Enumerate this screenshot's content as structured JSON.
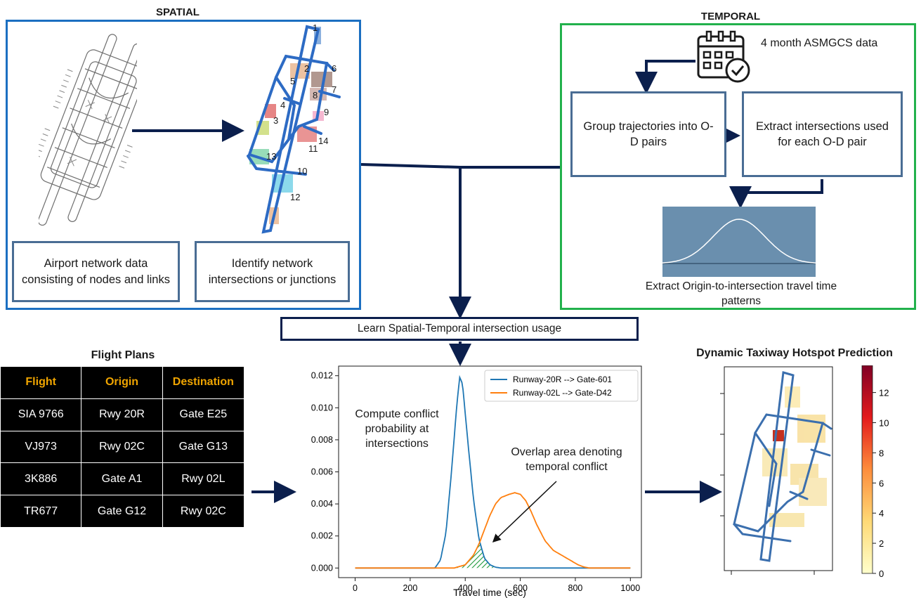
{
  "spatial": {
    "title": "SPATIAL",
    "box_left": "Airport network data consisting of nodes and links",
    "box_right": "Identify network intersections or junctions",
    "junction_labels": [
      "1",
      "2",
      "3",
      "4",
      "5",
      "6",
      "7",
      "8",
      "9",
      "10",
      "11",
      "12",
      "13",
      "14"
    ]
  },
  "temporal": {
    "title": "TEMPORAL",
    "data_label": "4 month ASMGCS data",
    "box_group": "Group trajectories into O-D pairs",
    "box_extract": "Extract intersections used for each O-D pair",
    "pattern_label": "Extract Origin-to-intersection travel time patterns"
  },
  "learn_label": "Learn Spatial-Temporal intersection usage",
  "flight_plans": {
    "title": "Flight Plans",
    "headers": [
      "Flight",
      "Origin",
      "Destination"
    ],
    "rows": [
      [
        "SIA 9766",
        "Rwy 20R",
        "Gate E25"
      ],
      [
        "VJ973",
        "Rwy 02C",
        "Gate G13"
      ],
      [
        "3K886",
        "Gate A1",
        "Rwy 02L"
      ],
      [
        "TR677",
        "Gate G12",
        "Rwy 02C"
      ]
    ]
  },
  "chart_data": {
    "type": "line",
    "xlabel": "Travel time (sec)",
    "ylabel": "",
    "xlim": [
      -60,
      1040
    ],
    "ylim": [
      -0.0006,
      0.0126
    ],
    "xticks": [
      "0",
      "200",
      "400",
      "600",
      "800",
      "1000"
    ],
    "yticks": [
      "0.000",
      "0.002",
      "0.004",
      "0.006",
      "0.008",
      "0.010",
      "0.012"
    ],
    "legend_position": "top-right",
    "series": [
      {
        "name": "Runway-20R --> Gate-601",
        "color": "#1f77b4",
        "x": [
          0,
          290,
          310,
          330,
          350,
          370,
          380,
          390,
          410,
          430,
          450,
          470,
          490,
          510,
          530,
          1000
        ],
        "y": [
          0,
          0,
          0.0005,
          0.0022,
          0.006,
          0.0103,
          0.0119,
          0.0115,
          0.0078,
          0.0043,
          0.0018,
          0.0006,
          0.0002,
          5e-05,
          0,
          0
        ]
      },
      {
        "name": "Runway-02L --> Gate-D42",
        "color": "#ff7f0e",
        "x": [
          0,
          360,
          400,
          430,
          450,
          470,
          490,
          510,
          530,
          560,
          580,
          600,
          620,
          640,
          660,
          690,
          720,
          750,
          770,
          790,
          810,
          830,
          850,
          1000
        ],
        "y": [
          0,
          0,
          0.0002,
          0.0008,
          0.0015,
          0.0024,
          0.0033,
          0.004,
          0.0044,
          0.0046,
          0.0047,
          0.0046,
          0.0042,
          0.0035,
          0.0027,
          0.0017,
          0.0011,
          0.0008,
          0.0006,
          0.0004,
          0.0002,
          7e-05,
          0,
          0
        ]
      }
    ],
    "annotations": [
      "Compute conflict probability at intersections",
      "Overlap area denoting temporal conflict"
    ]
  },
  "hotspot": {
    "title": "Dynamic Taxiway Hotspot Prediction",
    "colorbar_ticks": [
      "0",
      "2",
      "4",
      "6",
      "8",
      "10",
      "12"
    ],
    "colorbar_range": [
      0,
      13.8
    ]
  },
  "colors": {
    "spatial_frame": "#1b6fc1",
    "temporal_frame": "#22b14c",
    "arrow": "#0b1f4d",
    "box_border": "#4a6d94",
    "dist_panel": "#6a8fae"
  }
}
